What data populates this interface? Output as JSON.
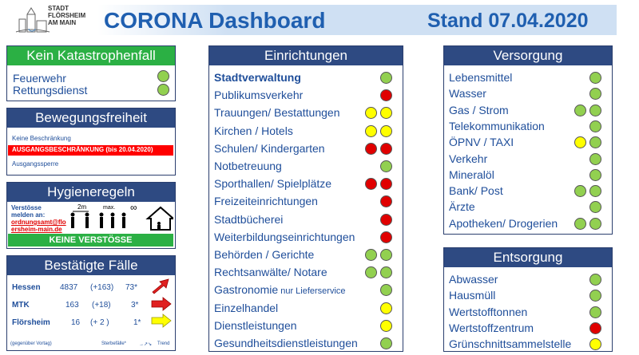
{
  "header": {
    "logo_text": "STADT\nFLÖRSHEIM\nAM MAIN",
    "title": "CORONA Dashboard",
    "stand": "Stand 07.04.2020"
  },
  "katastrophe": {
    "title": "Kein Katastrophenfall",
    "items": [
      {
        "label": "Feuerwehr",
        "status": "green"
      },
      {
        "label": "Rettungsdienst",
        "status": "green"
      }
    ]
  },
  "bewegung": {
    "title": "Bewegungsfreiheit",
    "options": [
      "Keine Beschränkung",
      "AUSGANGSBESCHRÄNKUNG (bis 20.04.2020)",
      "Ausgangssperre"
    ],
    "active_index": 1
  },
  "hygiene": {
    "title": "Hygieneregeln",
    "verstoesse_label": "Verstösse melden an:",
    "email": "ordnungsamt@floersheim-main.de",
    "distance_label": "2m",
    "max_label": "max.",
    "status_bar": "KEINE VERSTÖSSE"
  },
  "faelle": {
    "title": "Bestätigte Fälle",
    "rows": [
      {
        "region": "Hessen",
        "count": "4837",
        "delta": "(+163)",
        "deaths": "73*",
        "trend": "up"
      },
      {
        "region": "MTK",
        "count": "163",
        "delta": "(+18)",
        "deaths": "3*",
        "trend": "right"
      },
      {
        "region": "Flörsheim",
        "count": "16",
        "delta": "(+ 2 )",
        "deaths": "1*",
        "trend": "right-yellow"
      }
    ],
    "footer_left": "(gegenüber Vortag)",
    "footer_mid": "Sterbefälle*",
    "footer_right": "Trend"
  },
  "einrichtungen": {
    "title": "Einrichtungen",
    "items": [
      {
        "label": "Stadtverwaltung",
        "bold": true,
        "dots": [
          "green"
        ]
      },
      {
        "label": "Publikumsverkehr",
        "dots": [
          "red"
        ]
      },
      {
        "label": "Trauungen/ Bestattungen",
        "dots": [
          "yellow",
          "yellow"
        ]
      },
      {
        "label": "Kirchen / Hotels",
        "dots": [
          "yellow",
          "yellow"
        ]
      },
      {
        "label": "Schulen/ Kindergarten",
        "dots": [
          "red",
          "red"
        ]
      },
      {
        "label": "Notbetreuung",
        "dots": [
          "green"
        ]
      },
      {
        "label": "Sporthallen/ Spielplätze",
        "dots": [
          "red",
          "red"
        ]
      },
      {
        "label": "Freizeiteinrichtungen",
        "dots": [
          "red"
        ]
      },
      {
        "label": "Stadtbücherei",
        "dots": [
          "red"
        ]
      },
      {
        "label": "Weiterbildungseinrichtungen",
        "dots": [
          "red"
        ]
      },
      {
        "label": "Behörden / Gerichte",
        "dots": [
          "green",
          "green"
        ]
      },
      {
        "label": "Rechtsanwälte/ Notare",
        "dots": [
          "green",
          "green"
        ]
      },
      {
        "label": "Gastronomie",
        "suffix": " nur Lieferservice",
        "dots": [
          "green"
        ]
      },
      {
        "label": "Einzelhandel",
        "dots": [
          "yellow"
        ]
      },
      {
        "label": "Dienstleistungen",
        "dots": [
          "yellow"
        ]
      },
      {
        "label": "Gesundheitsdienstleistungen",
        "dots": [
          "green"
        ]
      }
    ]
  },
  "versorgung": {
    "title": "Versorgung",
    "items": [
      {
        "label": "Lebensmittel",
        "dots": [
          "green"
        ]
      },
      {
        "label": "Wasser",
        "dots": [
          "green"
        ]
      },
      {
        "label": "Gas / Strom",
        "dots": [
          "green",
          "green"
        ]
      },
      {
        "label": "Telekommunikation",
        "dots": [
          "green"
        ]
      },
      {
        "label": "ÖPNV / TAXI",
        "dots": [
          "yellow",
          "green"
        ]
      },
      {
        "label": "Verkehr",
        "dots": [
          "green"
        ]
      },
      {
        "label": "Mineralöl",
        "dots": [
          "green"
        ]
      },
      {
        "label": "Bank/ Post",
        "dots": [
          "green",
          "green"
        ]
      },
      {
        "label": "Ärzte",
        "dots": [
          "green"
        ]
      },
      {
        "label": "Apotheken/ Drogerien",
        "dots": [
          "green",
          "green"
        ]
      }
    ]
  },
  "entsorgung": {
    "title": "Entsorgung",
    "items": [
      {
        "label": "Abwasser",
        "dots": [
          "green"
        ]
      },
      {
        "label": "Hausmüll",
        "dots": [
          "green"
        ]
      },
      {
        "label": "Wertstofftonnen",
        "dots": [
          "green"
        ]
      },
      {
        "label": "Wertstoffzentrum",
        "dots": [
          "red"
        ]
      },
      {
        "label": "Grünschnittsammelstelle",
        "dots": [
          "yellow"
        ]
      }
    ]
  },
  "colors": {
    "green": "#92d050",
    "yellow": "#ffff00",
    "red": "#e00000",
    "navy": "#2e4a82",
    "accent": "#2bb044"
  }
}
